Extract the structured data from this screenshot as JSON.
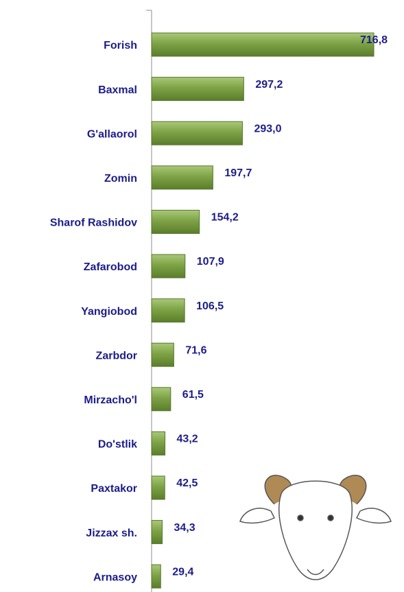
{
  "chart_data": {
    "type": "barh",
    "categories": [
      "Forish",
      "Baxmal",
      "G'allaorol",
      "Zomin",
      "Sharof Rashidov",
      "Zafarobod",
      "Yangiobod",
      "Zarbdor",
      "Mirzacho'l",
      "Do'stlik",
      "Paxtakor",
      "Jizzax sh.",
      "Arnasoy"
    ],
    "values": [
      716.8,
      297.2,
      293.0,
      197.7,
      154.2,
      107.9,
      106.5,
      71.6,
      61.5,
      43.2,
      42.5,
      34.3,
      29.4
    ],
    "value_labels": [
      "716,8",
      "297,2",
      "293,0",
      "197,7",
      "154,2",
      "107,9",
      "106,5",
      "71,6",
      "61,5",
      "43,2",
      "42,5",
      "34,3",
      "29,4"
    ],
    "color": "#7ea346"
  }
}
